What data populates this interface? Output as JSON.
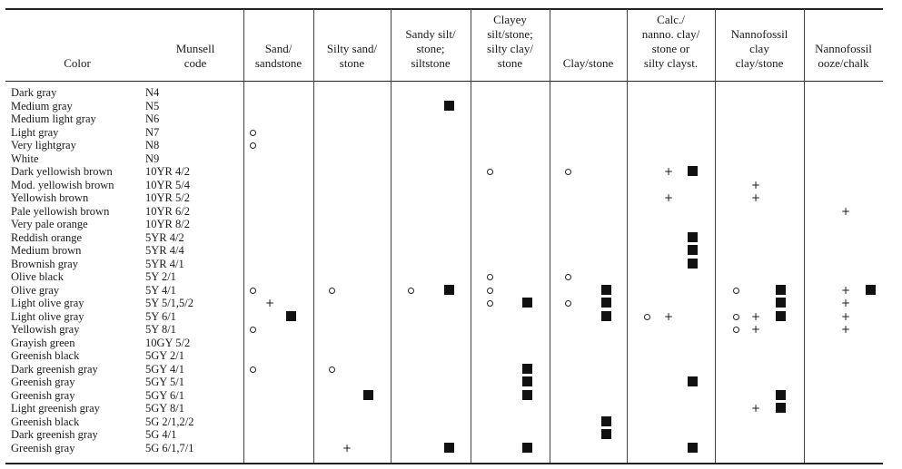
{
  "headers": {
    "color": [
      "Color"
    ],
    "munsell": [
      "Munsell",
      "code"
    ],
    "categories": [
      [
        "Sand/",
        "sandstone"
      ],
      [
        "Silty sand/",
        "stone"
      ],
      [
        "Sandy silt/",
        "stone;",
        "siltstone"
      ],
      [
        "Clayey",
        "silt/stone;",
        "silty clay/",
        "stone"
      ],
      [
        "Clay/stone"
      ],
      [
        "Calc./",
        "nanno. clay/",
        "stone or",
        "silty clayst."
      ],
      [
        "Nannofossil",
        "clay",
        "clay/stone"
      ],
      [
        "Nannofossil",
        "ooze/chalk"
      ]
    ]
  },
  "legend_symbols": {
    "o": "circle",
    "+": "plus",
    "■": "filled-square"
  },
  "rows": [
    {
      "color": "Dark gray",
      "code": "N4",
      "marks": [
        [],
        [],
        [],
        [],
        [],
        [],
        [],
        []
      ]
    },
    {
      "color": "Medium gray",
      "code": "N5",
      "marks": [
        [],
        [],
        [
          "■"
        ],
        [],
        [],
        [],
        [],
        []
      ]
    },
    {
      "color": "Medium light gray",
      "code": "N6",
      "marks": [
        [],
        [],
        [],
        [],
        [],
        [],
        [],
        []
      ]
    },
    {
      "color": "Light gray",
      "code": "N7",
      "marks": [
        [
          "o"
        ],
        [],
        [],
        [],
        [],
        [],
        [],
        []
      ]
    },
    {
      "color": "Very lightgray",
      "code": "N8",
      "marks": [
        [
          "o"
        ],
        [],
        [],
        [],
        [],
        [],
        [],
        []
      ]
    },
    {
      "color": "White",
      "code": "N9",
      "marks": [
        [],
        [],
        [],
        [],
        [],
        [],
        [],
        []
      ]
    },
    {
      "color": "Dark yellowish brown",
      "code": "10YR 4/2",
      "marks": [
        [],
        [],
        [],
        [
          "o"
        ],
        [
          "o"
        ],
        [
          "+",
          "■"
        ],
        [],
        []
      ]
    },
    {
      "color": "Mod. yellowish brown",
      "code": "10YR 5/4",
      "marks": [
        [],
        [],
        [],
        [],
        [],
        [],
        [
          "+"
        ],
        []
      ]
    },
    {
      "color": "Yellowish brown",
      "code": "10YR 5/2",
      "marks": [
        [],
        [],
        [],
        [],
        [],
        [
          "+"
        ],
        [
          "+"
        ],
        []
      ]
    },
    {
      "color": "Pale yellowish brown",
      "code": "10YR 6/2",
      "marks": [
        [],
        [],
        [],
        [],
        [],
        [],
        [],
        [
          "+"
        ]
      ]
    },
    {
      "color": "Very pale orange",
      "code": "10YR 8/2",
      "marks": [
        [],
        [],
        [],
        [],
        [],
        [],
        [],
        []
      ]
    },
    {
      "color": "Reddish orange",
      "code": "5YR 4/2",
      "marks": [
        [],
        [],
        [],
        [],
        [],
        [
          "■"
        ],
        [],
        []
      ]
    },
    {
      "color": "Medium brown",
      "code": "5YR 4/4",
      "marks": [
        [],
        [],
        [],
        [],
        [],
        [
          "■"
        ],
        [],
        []
      ]
    },
    {
      "color": "Brownish gray",
      "code": "5YR 4/1",
      "marks": [
        [],
        [],
        [],
        [],
        [],
        [
          "■"
        ],
        [],
        []
      ]
    },
    {
      "color": "Olive black",
      "code": "5Y 2/1",
      "marks": [
        [],
        [],
        [],
        [
          "o"
        ],
        [
          "o"
        ],
        [],
        [],
        []
      ]
    },
    {
      "color": "Olive gray",
      "code": "5Y 4/1",
      "marks": [
        [
          "o"
        ],
        [
          "o"
        ],
        [
          "o",
          "■"
        ],
        [
          "o"
        ],
        [
          "■"
        ],
        [],
        [
          "o",
          "■"
        ],
        [
          "+",
          "■"
        ]
      ]
    },
    {
      "color": "Light olive gray",
      "code": "5Y 5/1,5/2",
      "marks": [
        [
          "+"
        ],
        [],
        [],
        [
          "o",
          "■"
        ],
        [
          "o",
          "■"
        ],
        [],
        [
          "■"
        ],
        [
          "+"
        ]
      ]
    },
    {
      "color": "Light olive gray",
      "code": "5Y 6/1",
      "marks": [
        [
          "■"
        ],
        [],
        [],
        [],
        [
          "■"
        ],
        [
          "o",
          "+"
        ],
        [
          "o",
          "+",
          "■"
        ],
        [
          "+"
        ]
      ]
    },
    {
      "color": "Yellowish gray",
      "code": "5Y 8/1",
      "marks": [
        [
          "o"
        ],
        [],
        [],
        [],
        [],
        [],
        [
          "o",
          "+"
        ],
        [
          "+"
        ]
      ]
    },
    {
      "color": "Grayish green",
      "code": "10GY 5/2",
      "marks": [
        [],
        [],
        [],
        [],
        [],
        [],
        [],
        []
      ]
    },
    {
      "color": "Greenish black",
      "code": "5GY 2/1",
      "marks": [
        [],
        [],
        [],
        [],
        [],
        [],
        [],
        []
      ]
    },
    {
      "color": "Dark greenish gray",
      "code": "5GY 4/1",
      "marks": [
        [
          "o"
        ],
        [
          "o"
        ],
        [],
        [
          "■"
        ],
        [],
        [],
        [],
        []
      ]
    },
    {
      "color": "Greenish gray",
      "code": "5GY 5/1",
      "marks": [
        [],
        [],
        [],
        [
          "■"
        ],
        [],
        [
          "■"
        ],
        [],
        []
      ]
    },
    {
      "color": "Greenish gray",
      "code": "5GY 6/1",
      "marks": [
        [],
        [
          "■"
        ],
        [],
        [
          "■"
        ],
        [],
        [],
        [
          "■"
        ],
        []
      ]
    },
    {
      "color": "Light greenish gray",
      "code": "5GY 8/1",
      "marks": [
        [],
        [],
        [],
        [],
        [],
        [],
        [
          "+",
          "■"
        ],
        []
      ]
    },
    {
      "color": "Greenish black",
      "code": "5G 2/1,2/2",
      "marks": [
        [],
        [],
        [],
        [],
        [
          "■"
        ],
        [],
        [],
        []
      ]
    },
    {
      "color": "Dark greenish gray",
      "code": "5G 4/1",
      "marks": [
        [],
        [],
        [],
        [],
        [
          "■"
        ],
        [],
        [],
        []
      ]
    },
    {
      "color": "Greenish gray",
      "code": "5G 6/1,7/1",
      "marks": [
        [],
        [
          "+"
        ],
        [
          "■"
        ],
        [
          "■"
        ],
        [],
        [
          "■"
        ],
        [],
        []
      ]
    }
  ]
}
